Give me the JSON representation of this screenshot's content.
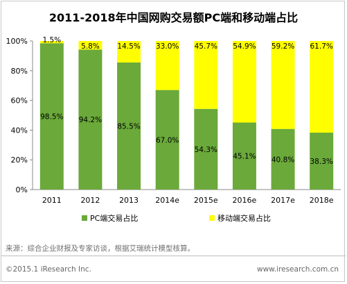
{
  "title": "2011-2018年中国网购交易额PC端和移动端占比",
  "source_note": "来源：综合企业财报及专家访谈，根据艾瑞统计模型核算。",
  "copyright": "©2015.1 iResearch Inc.",
  "website": "www.iresearch.com.cn",
  "colors": {
    "pc": "#6aa93a",
    "mobile": "#ffff00"
  },
  "chart_data": {
    "type": "bar",
    "stacked": true,
    "title": "2011-2018年中国网购交易额PC端和移动端占比",
    "categories": [
      "2011",
      "2012",
      "2013",
      "2014e",
      "2015e",
      "2016e",
      "2017e",
      "2018e"
    ],
    "series": [
      {
        "name": "PC端交易占比",
        "values": [
          98.5,
          94.2,
          85.5,
          67.0,
          54.3,
          45.1,
          40.8,
          38.3
        ],
        "labels": [
          "98.5%",
          "94.2%",
          "85.5%",
          "67.0%",
          "54.3%",
          "45.1%",
          "40.8%",
          "38.3%"
        ]
      },
      {
        "name": "移动端交易占比",
        "values": [
          1.5,
          5.8,
          14.5,
          33.0,
          45.7,
          54.9,
          59.2,
          61.7
        ],
        "labels": [
          "1.5%",
          "5.8%",
          "14.5%",
          "33.0%",
          "45.7%",
          "54.9%",
          "59.2%",
          "61.7%"
        ]
      }
    ],
    "yticks": [
      "0%",
      "20%",
      "40%",
      "60%",
      "80%",
      "100%"
    ],
    "ylim": [
      0,
      100
    ],
    "legend": "bottom",
    "grid": false
  }
}
